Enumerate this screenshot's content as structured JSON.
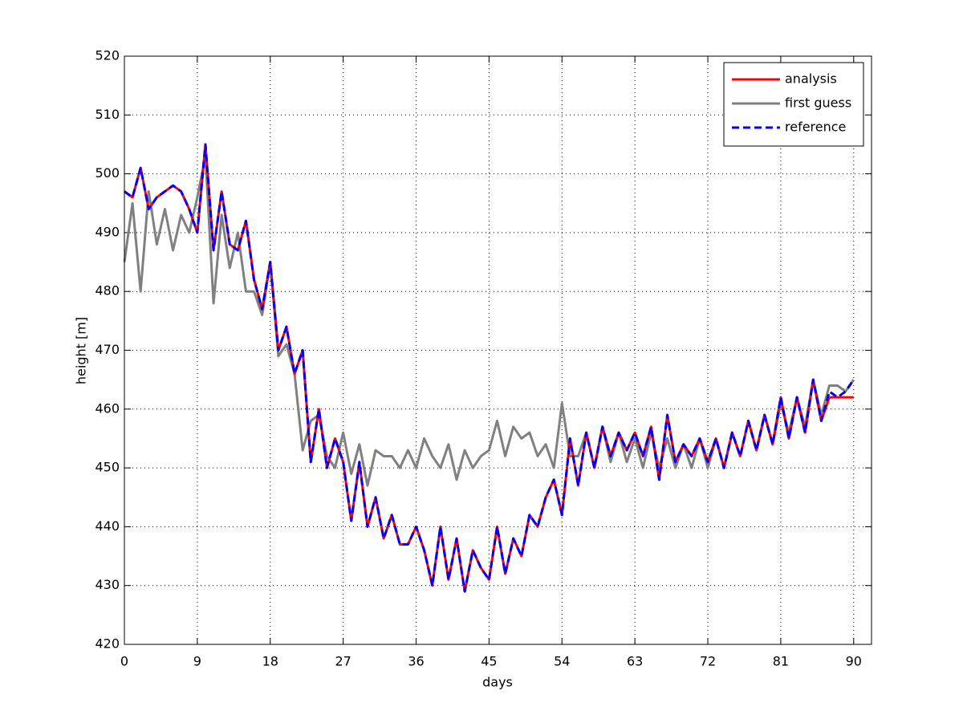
{
  "chart_data": {
    "type": "line",
    "xlabel": "days",
    "ylabel": "height [m]",
    "x": [
      0,
      1,
      2,
      3,
      4,
      5,
      6,
      7,
      8,
      9,
      10,
      11,
      12,
      13,
      14,
      15,
      16,
      17,
      18,
      19,
      20,
      21,
      22,
      23,
      24,
      25,
      26,
      27,
      28,
      29,
      30,
      31,
      32,
      33,
      34,
      35,
      36,
      37,
      38,
      39,
      40,
      41,
      42,
      43,
      44,
      45,
      46,
      47,
      48,
      49,
      50,
      51,
      52,
      53,
      54,
      55,
      56,
      57,
      58,
      59,
      60,
      61,
      62,
      63,
      64,
      65,
      66,
      67,
      68,
      69,
      70,
      71,
      72,
      73,
      74,
      75,
      76,
      77,
      78,
      79,
      80,
      81,
      82,
      83,
      84,
      85,
      86,
      87,
      88,
      89,
      90
    ],
    "series": [
      {
        "name": "first guess",
        "color": "#808080",
        "dash": false,
        "values": [
          485,
          495,
          480,
          497,
          488,
          494,
          487,
          493,
          490,
          496,
          503,
          478,
          493,
          484,
          490,
          480,
          480,
          476,
          485,
          469,
          471,
          466,
          453,
          458,
          459,
          452,
          450,
          456,
          449,
          454,
          447,
          453,
          452,
          452,
          450,
          453,
          450,
          455,
          452,
          450,
          454,
          448,
          453,
          450,
          452,
          453,
          458,
          452,
          457,
          455,
          456,
          452,
          454,
          450,
          461,
          452,
          452,
          456,
          450,
          457,
          451,
          456,
          451,
          455,
          450,
          456,
          450,
          455,
          450,
          454,
          450,
          455,
          450,
          455,
          450,
          456,
          452,
          458,
          453,
          459,
          454,
          461,
          456,
          462,
          457,
          465,
          459,
          464,
          464,
          463,
          465
        ]
      },
      {
        "name": "analysis",
        "color": "#ff0000",
        "dash": false,
        "values": [
          497,
          496,
          501,
          494,
          496,
          497,
          498,
          497,
          494,
          490,
          505,
          487,
          497,
          488,
          487,
          492,
          482,
          477,
          485,
          470,
          474,
          466,
          470,
          451,
          460,
          450,
          455,
          451,
          441,
          451,
          440,
          445,
          438,
          442,
          437,
          437,
          440,
          436,
          430,
          440,
          431,
          438,
          429,
          436,
          433,
          431,
          440,
          432,
          438,
          435,
          442,
          440,
          445,
          448,
          442,
          455,
          447,
          456,
          450,
          457,
          452,
          456,
          453,
          456,
          452,
          457,
          448,
          459,
          451,
          454,
          452,
          455,
          451,
          455,
          450,
          456,
          452,
          458,
          453,
          459,
          454,
          462,
          455,
          462,
          456,
          465,
          458,
          462,
          462,
          462,
          462
        ]
      },
      {
        "name": "reference",
        "color": "#0000ff",
        "dash": true,
        "values": [
          497,
          496,
          501,
          494,
          496,
          497,
          498,
          497,
          494,
          490,
          505,
          487,
          497,
          488,
          487,
          492,
          482,
          477,
          485,
          470,
          474,
          466,
          470,
          451,
          460,
          450,
          455,
          451,
          441,
          451,
          440,
          445,
          438,
          442,
          437,
          437,
          440,
          436,
          430,
          440,
          431,
          438,
          429,
          436,
          433,
          431,
          440,
          432,
          438,
          435,
          442,
          440,
          445,
          448,
          442,
          455,
          447,
          456,
          450,
          457,
          452,
          456,
          453,
          456,
          452,
          457,
          448,
          459,
          451,
          454,
          452,
          455,
          451,
          455,
          450,
          456,
          452,
          458,
          453,
          459,
          454,
          462,
          455,
          462,
          456,
          465,
          458,
          463,
          462,
          463,
          465
        ]
      }
    ],
    "xlim": [
      0,
      92.2
    ],
    "ylim": [
      420,
      520
    ],
    "xticks": [
      0,
      9,
      18,
      27,
      36,
      45,
      54,
      63,
      72,
      81,
      90
    ],
    "yticks": [
      420,
      430,
      440,
      450,
      460,
      470,
      480,
      490,
      500,
      510,
      520
    ],
    "grid": true,
    "legend": "upper right"
  }
}
